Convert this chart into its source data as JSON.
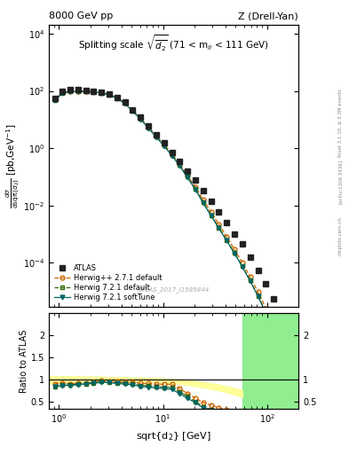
{
  "title_left": "8000 GeV pp",
  "title_right": "Z (Drell-Yan)",
  "main_title": "Splitting scale $\\sqrt{\\overline{d}_2}$ (71 < m$_{ll}$ < 111 GeV)",
  "ylabel_main": "$\\frac{d\\sigma}{d\\sqrt{d_2}}$ [pb,GeV$^{-1}$]",
  "ylabel_ratio": "Ratio to ATLAS",
  "xlabel": "sqrt{d_2} [GeV]",
  "watermark": "ATLAS_2017_I1589844",
  "side_text1": "Rivet 3.1.10, ≥ 3.3M events",
  "side_text2": "[arXiv:1306.3436]",
  "side_text3": "mcplots.cern.ch",
  "xlim": [
    0.8,
    200
  ],
  "ylim_main": [
    3e-06,
    20000.0
  ],
  "ylim_ratio": [
    0.35,
    2.5
  ],
  "atlas_x": [
    0.91,
    1.08,
    1.28,
    1.52,
    1.81,
    2.15,
    2.56,
    3.05,
    3.62,
    4.31,
    5.12,
    6.09,
    7.24,
    8.61,
    10.24,
    12.18,
    14.48,
    17.22,
    20.48,
    24.35,
    28.95,
    34.42,
    40.93,
    48.67,
    57.88,
    68.83,
    81.88,
    97.38,
    115.8,
    137.7,
    163.8
  ],
  "atlas_y": [
    55,
    95,
    110,
    108,
    105,
    100,
    90,
    78,
    60,
    40,
    22,
    12,
    6.0,
    3.0,
    1.5,
    0.7,
    0.35,
    0.16,
    0.075,
    0.033,
    0.014,
    0.006,
    0.0025,
    0.001,
    0.00045,
    0.00016,
    5.5e-05,
    1.8e-05,
    5.5e-06,
    1.5e-06,
    4e-07
  ],
  "hppdef_x": [
    0.91,
    1.08,
    1.28,
    1.52,
    1.81,
    2.15,
    2.56,
    3.05,
    3.62,
    4.31,
    5.12,
    6.09,
    7.24,
    8.61,
    10.24,
    12.18,
    14.48,
    17.22,
    20.48,
    24.35,
    28.95,
    34.42,
    40.93,
    48.67,
    57.88,
    68.83,
    81.88,
    97.38,
    115.8,
    137.7,
    163.8
  ],
  "hppdef_y": [
    50,
    88,
    100,
    99,
    97,
    95,
    88,
    76,
    58,
    38,
    21,
    11,
    5.5,
    2.7,
    1.35,
    0.63,
    0.28,
    0.11,
    0.044,
    0.016,
    0.006,
    0.0022,
    0.00082,
    0.00029,
    0.0001,
    3.2e-05,
    9.5e-06,
    2.6e-06,
    6.5e-07,
    1.4e-07,
    2.8e-08
  ],
  "h721def_x": [
    0.91,
    1.08,
    1.28,
    1.52,
    1.81,
    2.15,
    2.56,
    3.05,
    3.62,
    4.31,
    5.12,
    6.09,
    7.24,
    8.61,
    10.24,
    12.18,
    14.48,
    17.22,
    20.48,
    24.35,
    28.95,
    34.42,
    40.93,
    48.67,
    57.88,
    68.83,
    81.88,
    97.38,
    115.8,
    137.7,
    163.8
  ],
  "h721def_y": [
    47,
    84,
    97,
    97,
    96,
    93,
    86,
    74,
    56,
    37,
    20,
    10.5,
    5.2,
    2.55,
    1.25,
    0.58,
    0.255,
    0.1,
    0.038,
    0.013,
    0.0046,
    0.0017,
    0.00062,
    0.00022,
    7.5e-05,
    2.4e-05,
    7e-06,
    1.9e-06,
    4.7e-07,
    1e-07,
    2e-08
  ],
  "h721soft_x": [
    0.91,
    1.08,
    1.28,
    1.52,
    1.81,
    2.15,
    2.56,
    3.05,
    3.62,
    4.31,
    5.12,
    6.09,
    7.24,
    8.61,
    10.24,
    12.18,
    14.48,
    17.22,
    20.48,
    24.35,
    28.95,
    34.42,
    40.93,
    48.67,
    57.88,
    68.83,
    81.88,
    97.38,
    115.8,
    137.7,
    163.8
  ],
  "h721soft_y": [
    46,
    83,
    96,
    96,
    95,
    92,
    85,
    73,
    55,
    36,
    19.5,
    10.2,
    5.0,
    2.45,
    1.2,
    0.55,
    0.24,
    0.093,
    0.036,
    0.012,
    0.0044,
    0.0016,
    0.00059,
    0.00021,
    7.2e-05,
    2.3e-05,
    6.7e-06,
    1.8e-06,
    4.5e-07,
    9.5e-08,
    1.9e-08
  ],
  "hppdef_ratio": [
    0.91,
    0.93,
    0.91,
    0.92,
    0.92,
    0.95,
    0.978,
    0.974,
    0.967,
    0.95,
    0.955,
    0.917,
    0.917,
    0.9,
    0.9,
    0.9,
    0.8,
    0.688,
    0.587,
    0.485,
    0.429,
    0.367,
    0.328,
    0.29,
    0.222,
    0.2,
    0.173,
    0.144,
    0.118,
    0.093,
    0.07
  ],
  "h721def_ratio": [
    0.855,
    0.884,
    0.882,
    0.898,
    0.914,
    0.93,
    0.956,
    0.949,
    0.933,
    0.925,
    0.909,
    0.875,
    0.867,
    0.85,
    0.833,
    0.829,
    0.729,
    0.625,
    0.507,
    0.394,
    0.329,
    0.283,
    0.248,
    0.22,
    0.167,
    0.15,
    0.127,
    0.104,
    0.086,
    0.073,
    0.05
  ],
  "h721soft_ratio": [
    0.836,
    0.874,
    0.873,
    0.889,
    0.905,
    0.92,
    0.944,
    0.936,
    0.917,
    0.9,
    0.886,
    0.85,
    0.833,
    0.817,
    0.8,
    0.786,
    0.686,
    0.581,
    0.48,
    0.364,
    0.314,
    0.267,
    0.236,
    0.21,
    0.16,
    0.144,
    0.122,
    0.1,
    0.082,
    0.07,
    0.048
  ],
  "yellow_band_x": [
    0.8,
    0.91,
    1.08,
    1.28,
    1.52,
    1.81,
    2.15,
    2.56,
    3.05,
    3.62,
    4.31,
    5.12,
    6.09,
    7.24,
    8.61,
    10.24,
    12.18,
    14.48,
    17.22,
    20.48,
    24.35,
    28.95,
    34.42,
    40.93,
    48.67,
    57.88
  ],
  "yellow_band_lo": [
    0.92,
    0.92,
    0.95,
    0.95,
    0.95,
    0.96,
    0.96,
    0.97,
    0.97,
    0.97,
    0.97,
    0.97,
    0.96,
    0.96,
    0.95,
    0.94,
    0.93,
    0.91,
    0.89,
    0.86,
    0.83,
    0.8,
    0.76,
    0.72,
    0.67,
    0.61
  ],
  "yellow_band_hi": [
    1.08,
    1.08,
    1.08,
    1.08,
    1.08,
    1.07,
    1.07,
    1.07,
    1.06,
    1.06,
    1.06,
    1.05,
    1.05,
    1.04,
    1.04,
    1.03,
    1.02,
    1.01,
    0.99,
    0.97,
    0.94,
    0.92,
    0.89,
    0.85,
    0.81,
    0.76
  ],
  "green_band_x_start": 57.88,
  "green_band_lo": 0.35,
  "green_band_hi": 2.5,
  "color_atlas": "#222222",
  "color_hppdef": "#cc6600",
  "color_h721def": "#336600",
  "color_h721soft": "#006666",
  "color_yellow": "#ffff99",
  "color_green": "#90ee90"
}
